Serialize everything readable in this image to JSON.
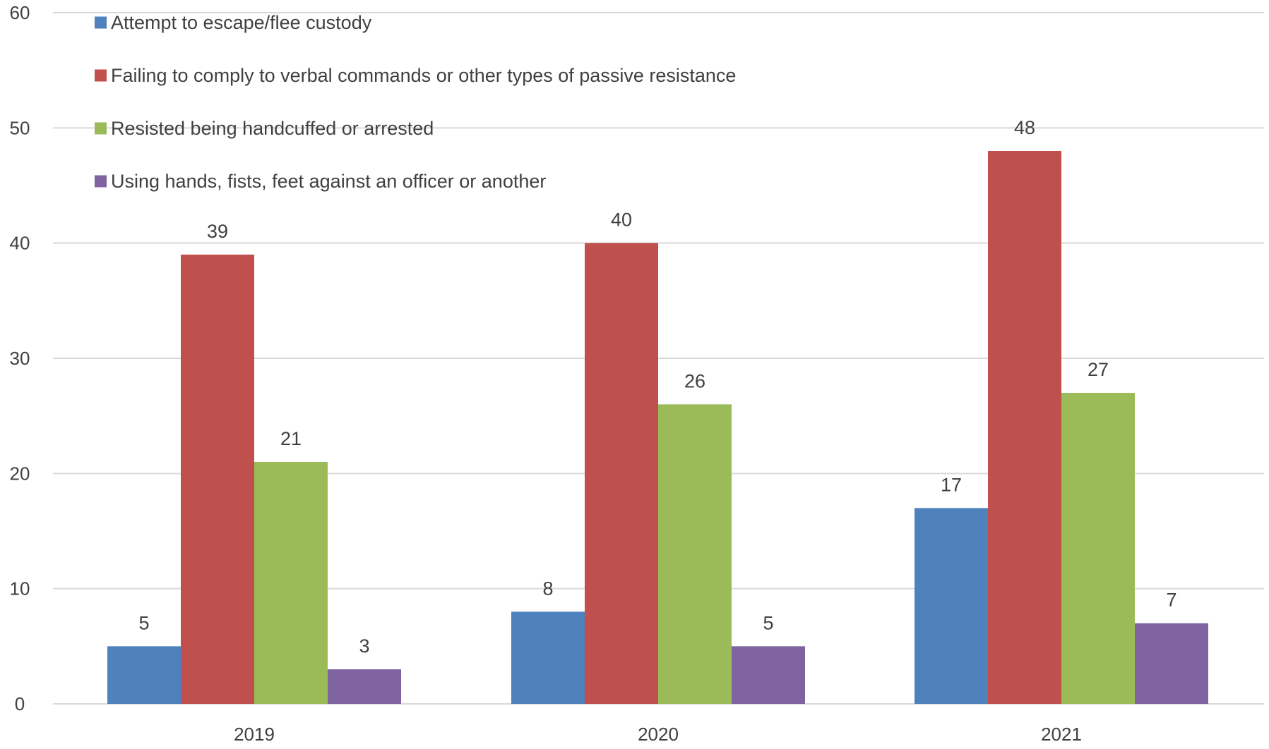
{
  "chart_data": {
    "type": "bar",
    "categories": [
      "2019",
      "2020",
      "2021"
    ],
    "series": [
      {
        "name": "Attempt to escape/flee custody",
        "color": "#4F81BD",
        "values": [
          5,
          8,
          17
        ]
      },
      {
        "name": "Failing to comply to verbal commands or other types of passive resistance",
        "color": "#C0504D",
        "values": [
          39,
          40,
          48
        ]
      },
      {
        "name": "Resisted being handcuffed or arrested",
        "color": "#9BBB59",
        "values": [
          21,
          26,
          27
        ]
      },
      {
        "name": "Using hands, fists, feet against an officer or another",
        "color": "#8064A2",
        "values": [
          3,
          5,
          7
        ]
      }
    ],
    "ylim": [
      0,
      60
    ],
    "yticks": [
      0,
      10,
      20,
      30,
      40,
      50,
      60
    ],
    "grid": true,
    "legend_position": "top-left",
    "data_labels": true,
    "title": "",
    "xlabel": "",
    "ylabel": ""
  },
  "colors": {
    "gridline": "#D9D9D9",
    "text": "#404040"
  }
}
